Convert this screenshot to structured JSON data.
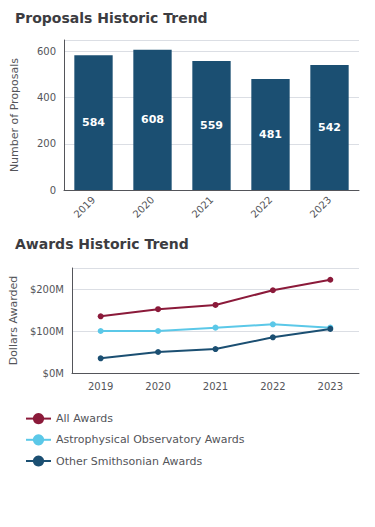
{
  "chart_data": [
    {
      "type": "bar",
      "title": "Proposals Historic Trend",
      "categories": [
        "2019",
        "2020",
        "2021",
        "2022",
        "2023"
      ],
      "values": [
        584,
        608,
        559,
        481,
        542
      ],
      "color": "#1b4f72",
      "ylabel": "Number of Proposals",
      "ylim": [
        0,
        650
      ],
      "yticks": [
        0,
        200,
        400,
        600
      ],
      "grid": true,
      "data_labels": true
    },
    {
      "type": "line",
      "title": "Awards Historic Trend",
      "categories": [
        "2019",
        "2020",
        "2021",
        "2022",
        "2023"
      ],
      "series": [
        {
          "name": "All Awards",
          "color": "#8b1a3a",
          "values": [
            135,
            152,
            162,
            197,
            222
          ]
        },
        {
          "name": "Astrophysical Observatory Awards",
          "color": "#5bc8e8",
          "values": [
            100,
            100,
            108,
            116,
            108
          ]
        },
        {
          "name": "Other Smithsonian Awards",
          "color": "#1b4f72",
          "values": [
            35,
            50,
            57,
            85,
            105
          ]
        }
      ],
      "ylabel": "Dollars Awarded",
      "ylim": [
        0,
        250
      ],
      "yticks": [
        {
          "value": 0,
          "label": "$0M"
        },
        {
          "value": 100,
          "label": "$100M"
        },
        {
          "value": 200,
          "label": "$200M"
        }
      ],
      "grid": true,
      "marker": "circle",
      "legend": "bottom"
    }
  ]
}
